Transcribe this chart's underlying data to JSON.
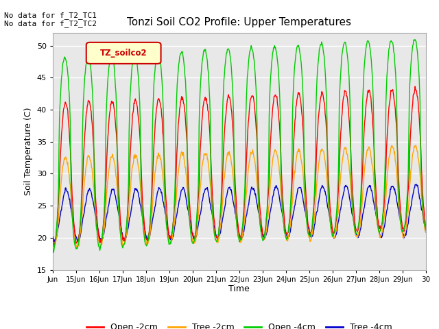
{
  "title": "Tonzi Soil CO2 Profile: Upper Temperatures",
  "ylabel": "Soil Temperature (C)",
  "xlabel": "Time",
  "ylim": [
    15,
    52
  ],
  "yticks": [
    15,
    20,
    25,
    30,
    35,
    40,
    45,
    50
  ],
  "no_data_text": [
    "No data for f_T2_TC1",
    "No data for f_T2_TC2"
  ],
  "legend_label": "TZ_soilco2",
  "legend_entries": [
    "Open -2cm",
    "Tree -2cm",
    "Open -4cm",
    "Tree -4cm"
  ],
  "legend_colors": [
    "#ff0000",
    "#ffa500",
    "#00cc00",
    "#0000cc"
  ],
  "line_colors": {
    "open2": "#ff0000",
    "tree2": "#ffa500",
    "open4": "#00cc00",
    "tree4": "#0000cc"
  },
  "x_start": 14,
  "x_end": 30,
  "xtick_labels": [
    "Jun",
    "15Jun",
    "16Jun",
    "17Jun",
    "18Jun",
    "19Jun",
    "20Jun",
    "21Jun",
    "22Jun",
    "23Jun",
    "24Jun",
    "25Jun",
    "26Jun",
    "27Jun",
    "28Jun",
    "29Jun",
    "30"
  ],
  "xtick_positions": [
    14,
    15,
    16,
    17,
    18,
    19,
    20,
    21,
    22,
    23,
    24,
    25,
    26,
    27,
    28,
    29,
    30
  ],
  "fig_bg": "#ffffff",
  "plot_bg": "#e8e8e8"
}
